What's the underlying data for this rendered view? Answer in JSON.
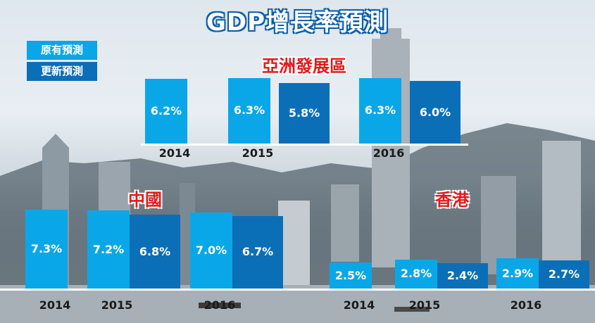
{
  "title": "GDP增長率預測",
  "legend": [
    {
      "label": "原有預測",
      "color": "#0aa7e8"
    },
    {
      "label": "更新預測",
      "color": "#0b6fb8"
    }
  ],
  "chart_data": [
    {
      "type": "bar",
      "title": "亞洲發展區",
      "categories": [
        "2014",
        "2015",
        "2016"
      ],
      "series": [
        {
          "name": "原有預測",
          "values": [
            6.2,
            6.3,
            6.3
          ]
        },
        {
          "name": "更新預測",
          "values": [
            null,
            5.8,
            6.0
          ]
        }
      ],
      "value_labels": {
        "原有預測": [
          "6.2%",
          "6.3%",
          "6.3%"
        ],
        "更新預測": [
          "",
          "5.8%",
          "6.0%"
        ]
      }
    },
    {
      "type": "bar",
      "title": "中國",
      "categories": [
        "2014",
        "2015",
        "2016"
      ],
      "series": [
        {
          "name": "原有預測",
          "values": [
            7.3,
            7.2,
            7.0
          ]
        },
        {
          "name": "更新預測",
          "values": [
            null,
            6.8,
            6.7
          ]
        }
      ],
      "value_labels": {
        "原有預測": [
          "7.3%",
          "7.2%",
          "7.0%"
        ],
        "更新預測": [
          "",
          "6.8%",
          "6.7%"
        ]
      }
    },
    {
      "type": "bar",
      "title": "香港",
      "categories": [
        "2014",
        "2015",
        "2016"
      ],
      "series": [
        {
          "name": "原有預測",
          "values": [
            2.5,
            2.8,
            2.9
          ]
        },
        {
          "name": "更新預測",
          "values": [
            null,
            2.4,
            2.7
          ]
        }
      ],
      "value_labels": {
        "原有預測": [
          "2.5%",
          "2.8%",
          "2.9%"
        ],
        "更新預測": [
          "",
          "2.4%",
          "2.7%"
        ]
      }
    }
  ]
}
